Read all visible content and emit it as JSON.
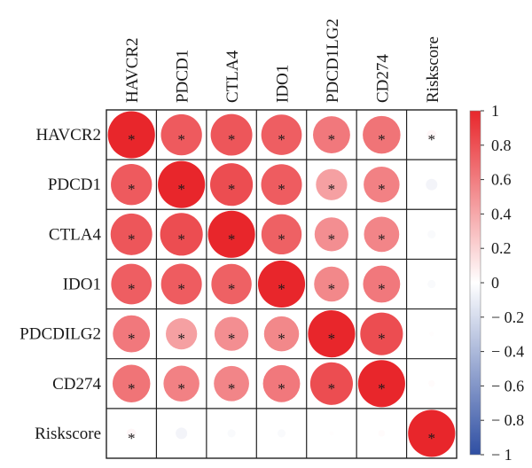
{
  "chart_data": {
    "type": "heatmap",
    "variables": [
      "HAVCR2",
      "PDCD1",
      "CTLA4",
      "IDO1",
      "PDCD1LG2",
      "CD274",
      "Riskscore"
    ],
    "row_labels": [
      "HAVCR2",
      "PDCD1",
      "CTLA4",
      "IDO1",
      "PDCDILG2",
      "CD274",
      "Riskscore"
    ],
    "col_labels": [
      "HAVCR2",
      "PDCD1",
      "CTLA4",
      "IDO1",
      "PDCD1LG2",
      "CD274",
      "Riskscore"
    ],
    "matrix": [
      [
        1.0,
        0.76,
        0.78,
        0.74,
        0.62,
        0.64,
        0.04
      ],
      [
        0.76,
        1.0,
        0.82,
        0.75,
        0.44,
        0.58,
        -0.06
      ],
      [
        0.78,
        0.82,
        1.0,
        0.73,
        0.52,
        0.56,
        -0.03
      ],
      [
        0.74,
        0.75,
        0.73,
        1.0,
        0.55,
        0.62,
        -0.03
      ],
      [
        0.62,
        0.44,
        0.52,
        0.55,
        1.0,
        0.82,
        0.01
      ],
      [
        0.64,
        0.58,
        0.56,
        0.62,
        0.82,
        1.0,
        0.02
      ],
      [
        0.04,
        -0.06,
        -0.03,
        -0.03,
        0.01,
        0.02,
        1.0
      ]
    ],
    "significant": [
      [
        true,
        true,
        true,
        true,
        true,
        true,
        true
      ],
      [
        true,
        true,
        true,
        true,
        true,
        true,
        false
      ],
      [
        true,
        true,
        true,
        true,
        true,
        true,
        false
      ],
      [
        true,
        true,
        true,
        true,
        true,
        true,
        false
      ],
      [
        true,
        true,
        true,
        true,
        true,
        true,
        false
      ],
      [
        true,
        true,
        true,
        true,
        true,
        true,
        false
      ],
      [
        true,
        false,
        false,
        false,
        false,
        false,
        true
      ]
    ],
    "significance_marker": "*",
    "colorbar": {
      "range": [
        -1,
        1
      ],
      "ticks": [
        1,
        0.8,
        0.6,
        0.4,
        0.2,
        0,
        -0.2,
        -0.4,
        -0.6,
        -0.8,
        -1
      ],
      "tick_labels": [
        "1",
        "0.8",
        "0.6",
        "0.4",
        "0.2",
        "0",
        "− 0.2",
        "− 0.4",
        "− 0.6",
        "− 0.8",
        "− 1"
      ],
      "colors": {
        "high": "#e8262b",
        "mid": "#ffffff",
        "low": "#2f4fa3"
      }
    },
    "grid": true,
    "legend_placement": "right"
  }
}
